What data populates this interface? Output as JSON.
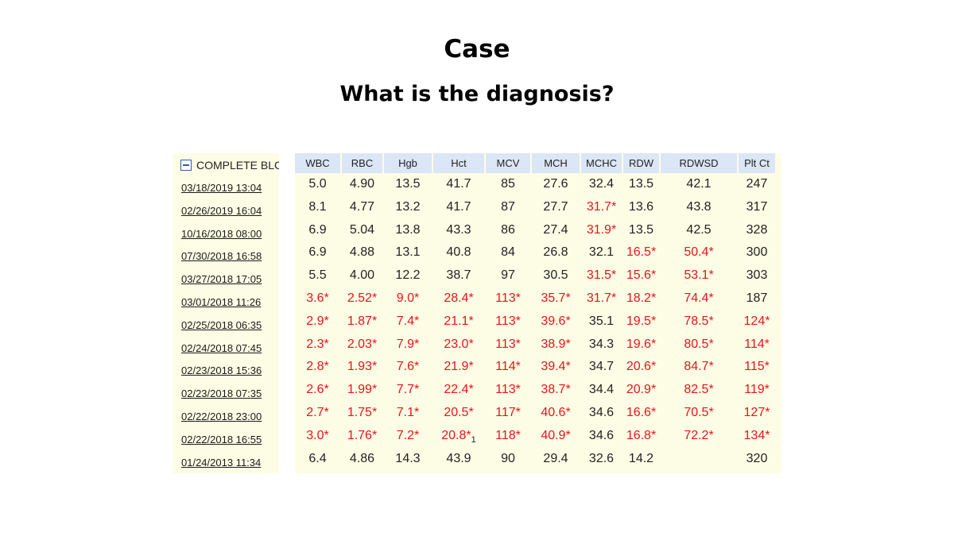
{
  "heading": {
    "title": "Case",
    "question": "What is the diagnosis?"
  },
  "panel": {
    "header_label": "COMPLETE BLC"
  },
  "columns": [
    "WBC",
    "RBC",
    "Hgb",
    "Hct",
    "MCV",
    "MCH",
    "MCHC",
    "RDW",
    "RDWSD",
    "Plt Ct"
  ],
  "dates": [
    "03/18/2019 13:04",
    "02/26/2019 16:04",
    "10/16/2018 08:00",
    "07/30/2018 16:58",
    "03/27/2018 17:05",
    "03/01/2018 11:26",
    "02/25/2018 06:35",
    "02/24/2018 07:45",
    "02/23/2018 15:36",
    "02/23/2018 07:35",
    "02/22/2018 23:00",
    "02/22/2018 16:55",
    "01/24/2013 11:34"
  ],
  "rows": [
    [
      [
        "5.0",
        false
      ],
      [
        "4.90",
        false
      ],
      [
        "13.5",
        false
      ],
      [
        "41.7",
        false
      ],
      [
        "85",
        false
      ],
      [
        "27.6",
        false
      ],
      [
        "32.4",
        false
      ],
      [
        "13.5",
        false
      ],
      [
        "42.1",
        false
      ],
      [
        "247",
        false
      ]
    ],
    [
      [
        "8.1",
        false
      ],
      [
        "4.77",
        false
      ],
      [
        "13.2",
        false
      ],
      [
        "41.7",
        false
      ],
      [
        "87",
        false
      ],
      [
        "27.7",
        false
      ],
      [
        "31.7*",
        true
      ],
      [
        "13.6",
        false
      ],
      [
        "43.8",
        false
      ],
      [
        "317",
        false
      ]
    ],
    [
      [
        "6.9",
        false
      ],
      [
        "5.04",
        false
      ],
      [
        "13.8",
        false
      ],
      [
        "43.3",
        false
      ],
      [
        "86",
        false
      ],
      [
        "27.4",
        false
      ],
      [
        "31.9*",
        true
      ],
      [
        "13.5",
        false
      ],
      [
        "42.5",
        false
      ],
      [
        "328",
        false
      ]
    ],
    [
      [
        "6.9",
        false
      ],
      [
        "4.88",
        false
      ],
      [
        "13.1",
        false
      ],
      [
        "40.8",
        false
      ],
      [
        "84",
        false
      ],
      [
        "26.8",
        false
      ],
      [
        "32.1",
        false
      ],
      [
        "16.5*",
        true
      ],
      [
        "50.4*",
        true
      ],
      [
        "300",
        false
      ]
    ],
    [
      [
        "5.5",
        false
      ],
      [
        "4.00",
        false
      ],
      [
        "12.2",
        false
      ],
      [
        "38.7",
        false
      ],
      [
        "97",
        false
      ],
      [
        "30.5",
        false
      ],
      [
        "31.5*",
        true
      ],
      [
        "15.6*",
        true
      ],
      [
        "53.1*",
        true
      ],
      [
        "303",
        false
      ]
    ],
    [
      [
        "3.6*",
        true
      ],
      [
        "2.52*",
        true
      ],
      [
        "9.0*",
        true
      ],
      [
        "28.4*",
        true
      ],
      [
        "113*",
        true
      ],
      [
        "35.7*",
        true
      ],
      [
        "31.7*",
        true
      ],
      [
        "18.2*",
        true
      ],
      [
        "74.4*",
        true
      ],
      [
        "187",
        false
      ]
    ],
    [
      [
        "2.9*",
        true
      ],
      [
        "1.87*",
        true
      ],
      [
        "7.4*",
        true
      ],
      [
        "21.1*",
        true
      ],
      [
        "113*",
        true
      ],
      [
        "39.6*",
        true
      ],
      [
        "35.1",
        false
      ],
      [
        "19.5*",
        true
      ],
      [
        "78.5*",
        true
      ],
      [
        "124*",
        true
      ]
    ],
    [
      [
        "2.3*",
        true
      ],
      [
        "2.03*",
        true
      ],
      [
        "7.9*",
        true
      ],
      [
        "23.0*",
        true
      ],
      [
        "113*",
        true
      ],
      [
        "38.9*",
        true
      ],
      [
        "34.3",
        false
      ],
      [
        "19.6*",
        true
      ],
      [
        "80.5*",
        true
      ],
      [
        "114*",
        true
      ]
    ],
    [
      [
        "2.8*",
        true
      ],
      [
        "1.93*",
        true
      ],
      [
        "7.6*",
        true
      ],
      [
        "21.9*",
        true
      ],
      [
        "114*",
        true
      ],
      [
        "39.4*",
        true
      ],
      [
        "34.7",
        false
      ],
      [
        "20.6*",
        true
      ],
      [
        "84.7*",
        true
      ],
      [
        "115*",
        true
      ]
    ],
    [
      [
        "2.6*",
        true
      ],
      [
        "1.99*",
        true
      ],
      [
        "7.7*",
        true
      ],
      [
        "22.4*",
        true
      ],
      [
        "113*",
        true
      ],
      [
        "38.7*",
        true
      ],
      [
        "34.4",
        false
      ],
      [
        "20.9*",
        true
      ],
      [
        "82.5*",
        true
      ],
      [
        "119*",
        true
      ]
    ],
    [
      [
        "2.7*",
        true
      ],
      [
        "1.75*",
        true
      ],
      [
        "7.1*",
        true
      ],
      [
        "20.5*",
        true
      ],
      [
        "117*",
        true
      ],
      [
        "40.6*",
        true
      ],
      [
        "34.6",
        false
      ],
      [
        "16.6*",
        true
      ],
      [
        "70.5*",
        true
      ],
      [
        "127*",
        true
      ]
    ],
    [
      [
        "3.0*",
        true
      ],
      [
        "1.76*",
        true
      ],
      [
        "7.2*",
        true
      ],
      [
        "20.8*",
        true,
        "1"
      ],
      [
        "118*",
        true
      ],
      [
        "40.9*",
        true
      ],
      [
        "34.6",
        false
      ],
      [
        "16.8*",
        true
      ],
      [
        "72.2*",
        true
      ],
      [
        "134*",
        true
      ]
    ],
    [
      [
        "6.4",
        false
      ],
      [
        "4.86",
        false
      ],
      [
        "14.3",
        false
      ],
      [
        "43.9",
        false
      ],
      [
        "90",
        false
      ],
      [
        "29.4",
        false
      ],
      [
        "32.6",
        false
      ],
      [
        "14.2",
        false
      ],
      [
        "",
        false
      ],
      [
        "320",
        false
      ]
    ]
  ],
  "colors": {
    "flag": "#e8141a",
    "header_bg": "#dbe6f6",
    "panel_bg": "#fdfde6"
  }
}
